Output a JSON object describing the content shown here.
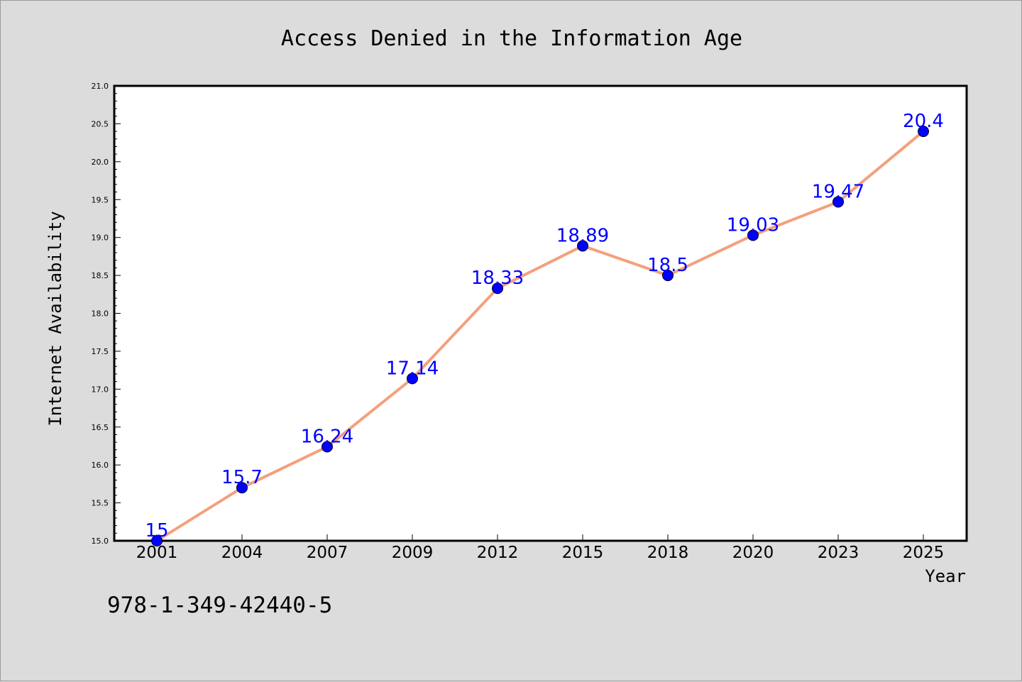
{
  "chart_data": {
    "type": "line",
    "title": "Access Denied in the Information Age",
    "xlabel": "Year",
    "ylabel": "Internet Availability",
    "categories": [
      "2001",
      "2004",
      "2007",
      "2009",
      "2012",
      "2015",
      "2018",
      "2020",
      "2023",
      "2025"
    ],
    "series": [
      {
        "values": [
          15,
          15.7,
          16.24,
          17.14,
          18.33,
          18.89,
          18.5,
          19.03,
          19.47,
          20.4
        ],
        "data_labels": [
          "15",
          "15.7",
          "16.24",
          "17.14",
          "18.33",
          "18.89",
          "18.5",
          "19.03",
          "19.47",
          "20.4"
        ]
      }
    ],
    "ylim": [
      15.0,
      21.0
    ],
    "yticks": [
      "15.0",
      "15.5",
      "16.0",
      "16.5",
      "17.0",
      "17.5",
      "18.0",
      "18.5",
      "19.0",
      "19.5",
      "20.0",
      "20.5",
      "21.0"
    ],
    "grid": false,
    "colors": {
      "line": "#f4a07c",
      "marker": "#0000ff",
      "label": "#0000ff",
      "background": "#dcdcdc",
      "plot_background": "#ffffff"
    }
  },
  "footer": {
    "isbn": "978-1-349-42440-5"
  }
}
